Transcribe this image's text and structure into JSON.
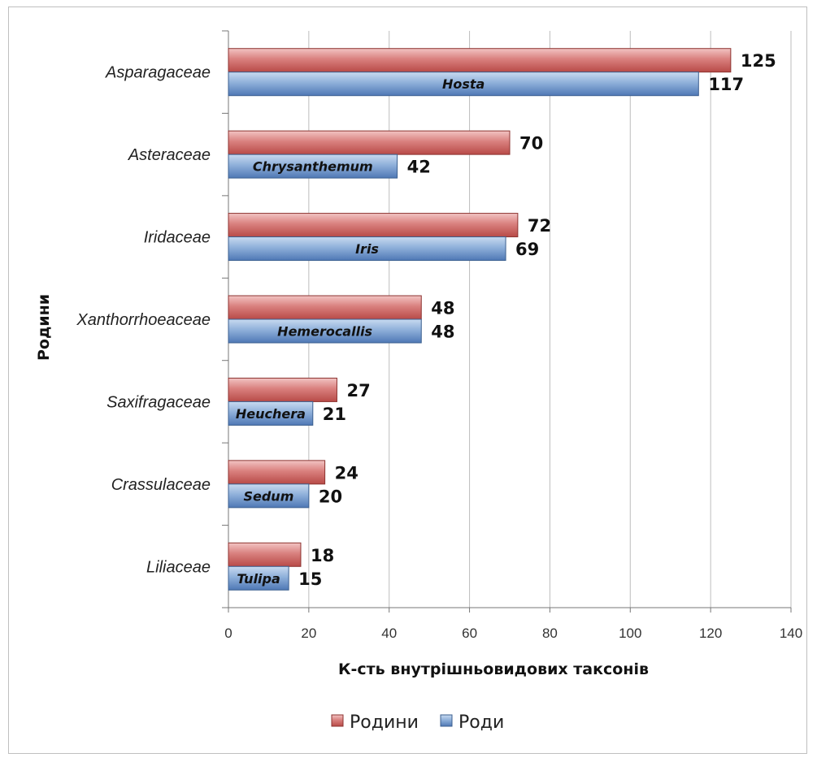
{
  "chart_data": {
    "type": "bar",
    "orientation": "horizontal",
    "categories": [
      "Asparagaceae",
      "Asteraceae",
      "Iridaceae",
      "Xanthorrhoeaceae",
      "Saxifragaceae",
      "Crassulaceae",
      "Liliaceae"
    ],
    "series": [
      {
        "name": "Родини",
        "values": [
          125,
          70,
          72,
          48,
          27,
          24,
          18
        ],
        "color": "#c0504d"
      },
      {
        "name": "Роди",
        "values": [
          117,
          42,
          69,
          48,
          21,
          20,
          15
        ],
        "color": "#4f81bd"
      }
    ],
    "bar_annotations": [
      "Hosta",
      "Chrysanthemum",
      "Iris",
      "Hemerocallis",
      "Heuchera",
      "Sedum",
      "Tulipa"
    ],
    "xlabel": "К-сть внутрішньовидових таксонів",
    "ylabel": "Родини",
    "xlim": [
      0,
      140
    ],
    "xticks": [
      "0",
      "20",
      "40",
      "60",
      "80",
      "100",
      "120",
      "140"
    ],
    "grid": "vertical",
    "legend_position": "bottom"
  }
}
